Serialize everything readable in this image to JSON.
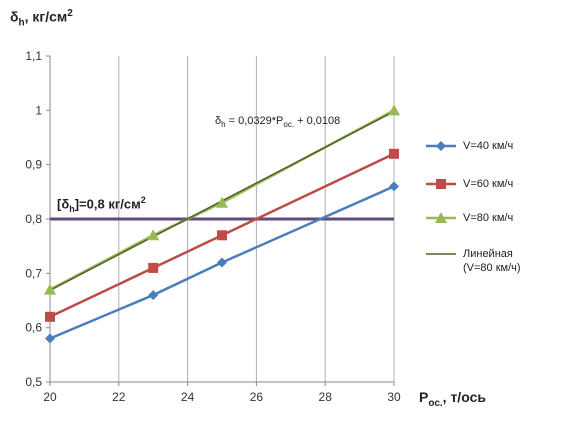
{
  "chart_data": {
    "type": "line",
    "xlim": [
      20,
      30
    ],
    "ylim": [
      0.5,
      1.1
    ],
    "xticks": [
      20,
      22,
      24,
      26,
      28,
      30
    ],
    "yticks": [
      0.5,
      0.6,
      0.7,
      0.8,
      0.9,
      1,
      1.1
    ],
    "xtick_labels": [
      "20",
      "22",
      "24",
      "26",
      "28",
      "30"
    ],
    "ytick_labels": [
      "0,5",
      "0,6",
      "0,7",
      "0,8",
      "0,9",
      "1",
      "1,1"
    ],
    "grid": "vertical",
    "y_label": {
      "symbol": "δ",
      "sub": "h",
      "rest": ", кг/см",
      "sup": "2"
    },
    "x_label": {
      "symbol": "P",
      "sub": "ос.",
      "rest": ", т/ось"
    },
    "x": [
      20,
      23,
      25,
      30
    ],
    "series": [
      {
        "name": "V=40 км/ч",
        "values": [
          0.58,
          0.66,
          0.72,
          0.86
        ],
        "color": "#4a7ebb",
        "marker": "diamond"
      },
      {
        "name": "V=60 км/ч",
        "values": [
          0.62,
          0.71,
          0.77,
          0.92
        ],
        "color": "#be4b48",
        "marker": "square"
      },
      {
        "name": "V=80 км/ч",
        "values": [
          0.67,
          0.77,
          0.83,
          1.0
        ],
        "color": "#98b954",
        "marker": "triangle"
      }
    ],
    "trendline": {
      "name": "Линейная",
      "name_line2": "(V=80 км/ч)",
      "slope": 0.0329,
      "intercept": 0.0108,
      "color": "#4f6228",
      "equation": {
        "symbol": "δ",
        "sub": "h",
        "mid": " = 0,0329*P",
        "sub2": "ос.",
        "tail": " + 0,0108"
      }
    },
    "limit": {
      "value": 0.8,
      "color": "#604a7b",
      "label": {
        "pre": "[δ",
        "sub": "h",
        "mid": "]=0,8 кг/см",
        "sup": "2"
      }
    },
    "legend_position": "right"
  }
}
